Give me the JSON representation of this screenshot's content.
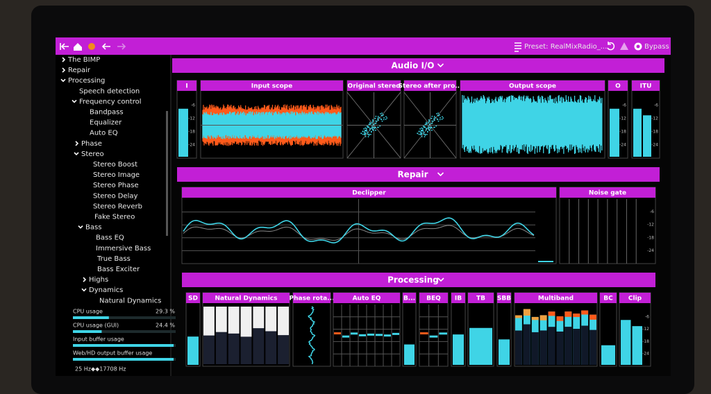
{
  "toolbar": {
    "preset": "Preset: RealMixRadio_...",
    "bypass": "Bypass"
  },
  "sidebar": {
    "tree": [
      "The BIMP",
      "Repair",
      "Processing",
      "Speech detection",
      "Frequency control",
      "Bandpass",
      "Equalizer",
      "Auto EQ",
      "Phase",
      "Stereo",
      "Stereo Boost",
      "Stereo Image",
      "Stereo Phase",
      "Stereo Delay",
      "Stereo Reverb",
      "Fake Stereo",
      "Bass",
      "Bass EQ",
      "Immersive Bass",
      "True Bass",
      "Bass Exciter",
      "Highs",
      "Dynamics",
      "Natural Dynamics"
    ],
    "stats": [
      {
        "label": "CPU usage",
        "value": "29.3 %"
      },
      {
        "label": "CPU usage (GUI)",
        "value": "24.4 %"
      },
      {
        "label": "Input buffer usage"
      },
      {
        "label": "Web/HD output buffer usage"
      }
    ],
    "range": "25 Hz◆◆17708 Hz"
  },
  "sections": [
    {
      "title": "Audio I/O",
      "panels": [
        "I",
        "Input scope",
        "Original stereo",
        "Stereo after pro...",
        "Output scope",
        "O",
        "ITU"
      ]
    },
    {
      "title": "Repair",
      "panels": [
        "Declipper",
        "Noise gate"
      ]
    },
    {
      "title": "Processing",
      "panels": [
        "SD",
        "Natural Dynamics",
        "Phase rota...",
        "Auto EQ",
        "B...",
        "BEQ",
        "IB",
        "TB",
        "SBB",
        "Multiband",
        "BC",
        "Clip"
      ]
    }
  ],
  "meter_ticks": [
    "-6",
    "-12",
    "-18",
    "-24"
  ]
}
